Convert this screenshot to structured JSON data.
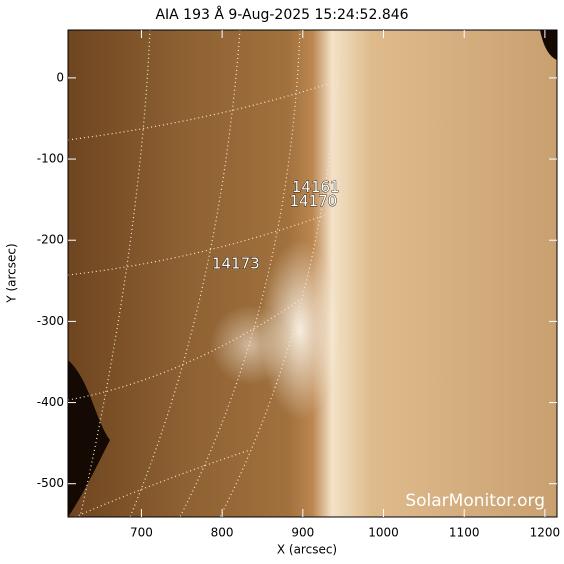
{
  "chart_data": {
    "type": "image",
    "title": "AIA 193 Å  9-Aug-2025 15:24:52.846",
    "xlabel": "X (arcsec)",
    "ylabel": "Y (arcsec)",
    "xlim": [
      609,
      1215
    ],
    "ylim": [
      -541,
      59
    ],
    "xticks": [
      700,
      800,
      900,
      1000,
      1100,
      1200
    ],
    "yticks": [
      0,
      -100,
      -200,
      -300,
      -400,
      -500
    ],
    "annotations": [
      {
        "text": "14161",
        "x": 916,
        "y": -135
      },
      {
        "text": "14170",
        "x": 913,
        "y": -152
      },
      {
        "text": "14173",
        "x": 817,
        "y": -229
      }
    ],
    "watermark": "SolarMonitor.org"
  }
}
